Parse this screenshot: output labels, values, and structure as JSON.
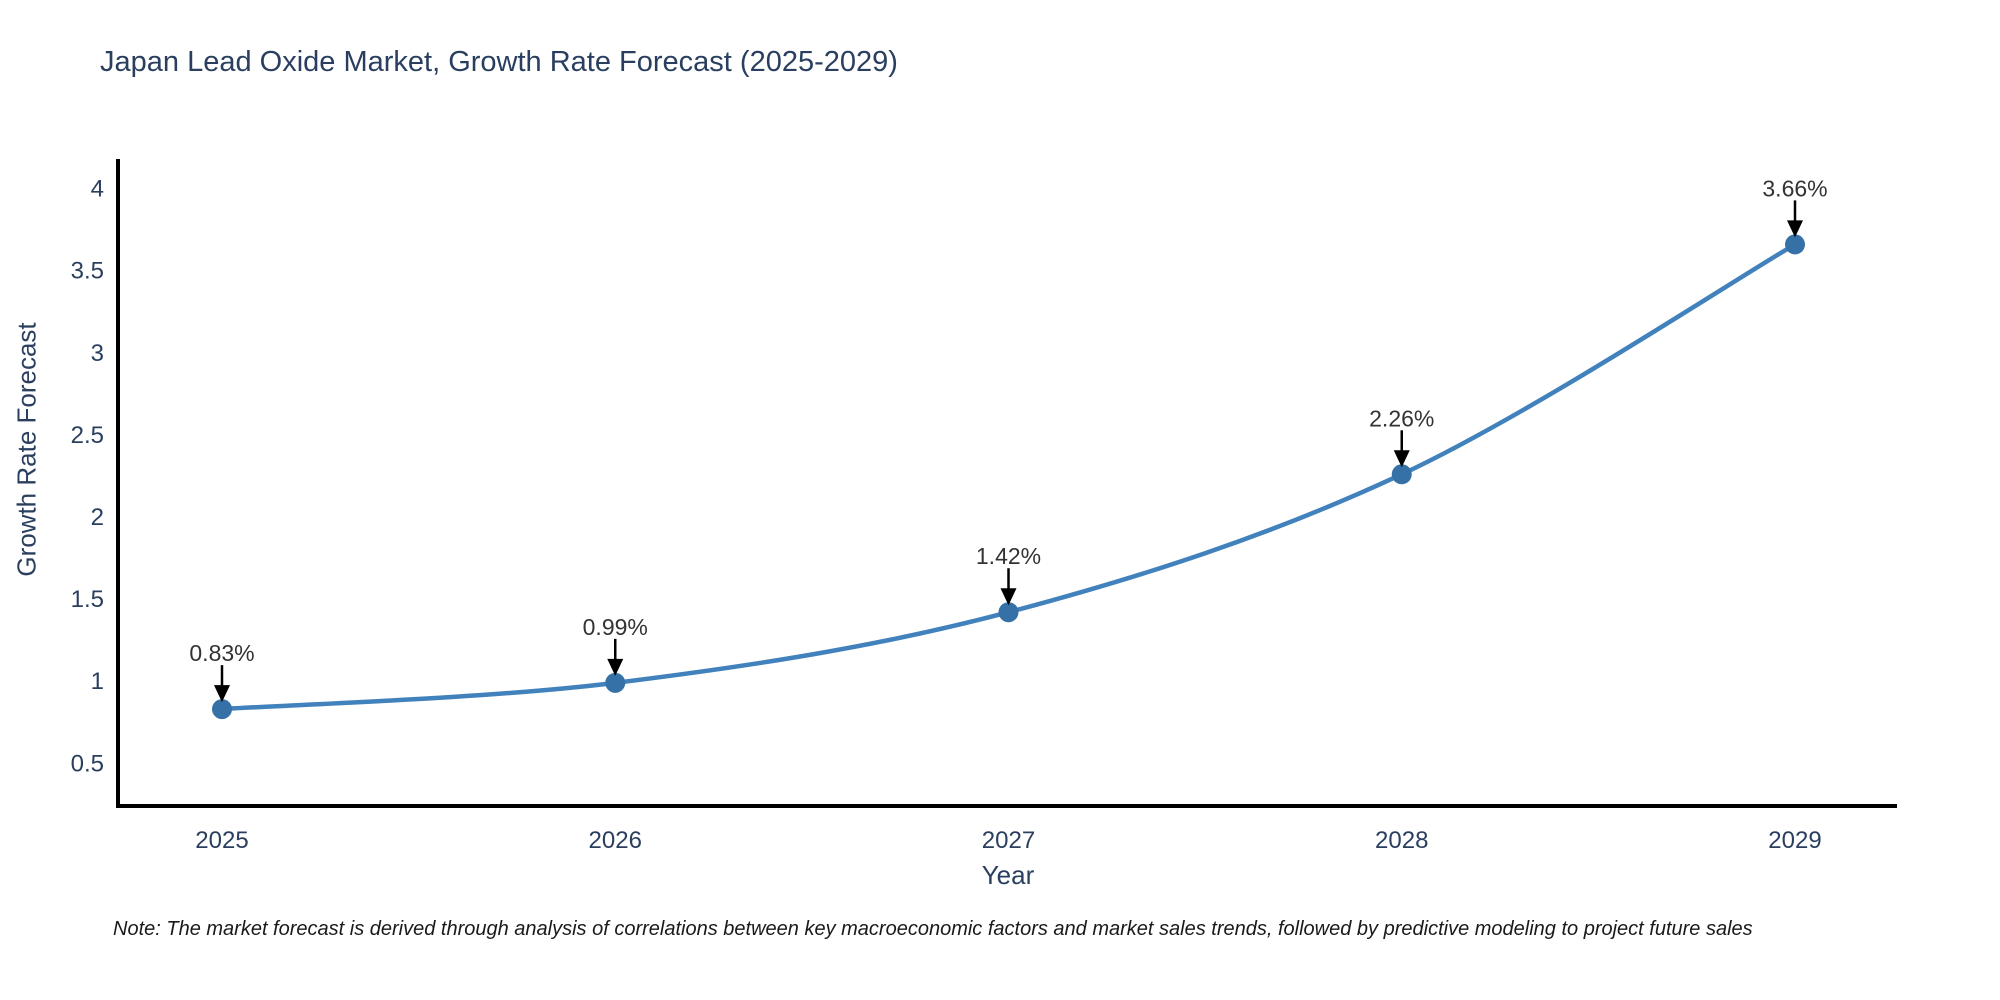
{
  "chart_data": {
    "type": "line",
    "title": "Japan Lead Oxide Market, Growth Rate Forecast (2025-2029)",
    "xlabel": "Year",
    "ylabel": "Growth Rate Forecast",
    "categories": [
      "2025",
      "2026",
      "2027",
      "2028",
      "2029"
    ],
    "values": [
      0.83,
      0.99,
      1.42,
      2.26,
      3.66
    ],
    "point_labels": [
      "0.83%",
      "0.99%",
      "1.42%",
      "2.26%",
      "3.66%"
    ],
    "ytick_values": [
      0.5,
      1,
      1.5,
      2,
      2.5,
      3,
      3.5,
      4
    ],
    "ytick_labels": [
      "0.5",
      "1",
      "1.5",
      "2",
      "2.5",
      "3",
      "3.5",
      "4"
    ],
    "ylim": [
      0.24,
      4.18
    ],
    "grid": false,
    "legend_position": "none",
    "marker_style": "circle",
    "annotation_arrow": "down",
    "colors": {
      "line": "#4181bc",
      "marker": "#3571a6",
      "axis_line": "#000000",
      "title_text": "#2a3f5f",
      "tick_text": "#2a3f5f",
      "annotation_text": "#333333",
      "arrow": "#000000"
    }
  },
  "note": {
    "text": "Note: The market forecast is derived through analysis of correlations between key macroeconomic factors and market sales trends, followed by predictive modeling to project future sales"
  }
}
